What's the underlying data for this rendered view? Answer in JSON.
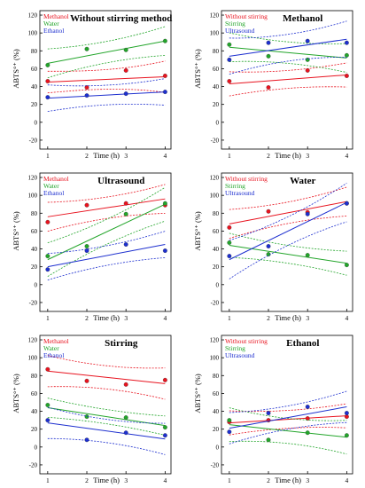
{
  "chart_data": [
    {
      "type": "scatter",
      "title": "Without stirring method",
      "xlabel": "Time (h)",
      "ylabel": "ABTS°⁺ (%)",
      "xticks": [
        1,
        2,
        3,
        4
      ],
      "yticks": [
        -20,
        0,
        20,
        40,
        60,
        80,
        100,
        120
      ],
      "xlim": [
        0.8,
        4.15
      ],
      "ylim": [
        -30,
        125
      ],
      "grid": false,
      "legend_position": "top-left",
      "series": [
        {
          "name": "Methanol",
          "color": "#e8131f",
          "x": [
            1,
            2,
            3,
            4
          ],
          "y": [
            46,
            39,
            58,
            52
          ],
          "fit": {
            "start": 45,
            "end": 51,
            "band_start": 9,
            "band_end": 13
          }
        },
        {
          "name": "Water",
          "color": "#22a52a",
          "x": [
            1,
            2,
            3,
            4
          ],
          "y": [
            64,
            82,
            81,
            91
          ],
          "fit": {
            "start": 66,
            "end": 91,
            "band_start": 12,
            "band_end": 12
          }
        },
        {
          "name": "Ethanol",
          "color": "#1d2fcf",
          "x": [
            1,
            2,
            3,
            4
          ],
          "y": [
            28,
            30,
            32,
            34
          ],
          "fit": {
            "start": 27,
            "end": 34,
            "band_start": 11,
            "band_end": 11
          }
        }
      ]
    },
    {
      "type": "scatter",
      "title": "Methanol",
      "xlabel": "Time (h)",
      "ylabel": "ABTS°⁺ (%)",
      "xticks": [
        1,
        2,
        3,
        4
      ],
      "yticks": [
        -20,
        0,
        20,
        40,
        60,
        80,
        100,
        120
      ],
      "xlim": [
        0.8,
        4.15
      ],
      "ylim": [
        -30,
        125
      ],
      "grid": false,
      "legend_position": "top-left",
      "series": [
        {
          "name": "Without stirring",
          "color": "#e8131f",
          "x": [
            1,
            2,
            3,
            4
          ],
          "y": [
            46,
            39,
            58,
            52
          ],
          "fit": {
            "start": 43,
            "end": 53,
            "band_start": 10,
            "band_end": 10
          }
        },
        {
          "name": "Stirring",
          "color": "#22a52a",
          "x": [
            1,
            2,
            3,
            4
          ],
          "y": [
            87,
            74,
            70,
            75
          ],
          "fit": {
            "start": 84,
            "end": 72,
            "band_start": 12,
            "band_end": 12
          }
        },
        {
          "name": "Ultrasound",
          "color": "#1d2fcf",
          "x": [
            1,
            2,
            3,
            4
          ],
          "y": [
            70,
            89,
            91,
            89
          ],
          "fit": {
            "start": 74,
            "end": 93,
            "band_start": 15,
            "band_end": 15
          }
        }
      ]
    },
    {
      "type": "scatter",
      "title": "Ultrasound",
      "xlabel": "Time (h)",
      "ylabel": "ABTS°⁺ (%)",
      "xticks": [
        1,
        2,
        3,
        4
      ],
      "yticks": [
        -20,
        0,
        20,
        40,
        60,
        80,
        100,
        120
      ],
      "xlim": [
        0.8,
        4.15
      ],
      "ylim": [
        -30,
        125
      ],
      "grid": false,
      "legend_position": "top-left",
      "series": [
        {
          "name": "Methanol",
          "color": "#e8131f",
          "x": [
            1,
            2,
            3,
            4
          ],
          "y": [
            70,
            89,
            91,
            89
          ],
          "fit": {
            "start": 76,
            "end": 96,
            "band_start": 12,
            "band_end": 12
          }
        },
        {
          "name": "Water",
          "color": "#22a52a",
          "x": [
            1,
            2,
            3,
            4
          ],
          "y": [
            32,
            43,
            79,
            91
          ],
          "fit": {
            "start": 28,
            "end": 90,
            "band_start": 14,
            "band_end": 14
          }
        },
        {
          "name": "Ethanol",
          "color": "#1d2fcf",
          "x": [
            1,
            2,
            3,
            4
          ],
          "y": [
            17,
            38,
            45,
            38
          ],
          "fit": {
            "start": 20,
            "end": 45,
            "band_start": 11,
            "band_end": 11
          }
        }
      ]
    },
    {
      "type": "scatter",
      "title": "Water",
      "xlabel": "Time (h)",
      "ylabel": "ABTS°⁺ (%)",
      "xticks": [
        1,
        2,
        3,
        4
      ],
      "yticks": [
        -20,
        0,
        20,
        40,
        60,
        80,
        100,
        120
      ],
      "xlim": [
        0.8,
        4.15
      ],
      "ylim": [
        -30,
        125
      ],
      "grid": false,
      "legend_position": "top-left",
      "series": [
        {
          "name": "Without stirring",
          "color": "#e8131f",
          "x": [
            1,
            2,
            3,
            4
          ],
          "y": [
            64,
            82,
            81,
            91
          ],
          "fit": {
            "start": 68,
            "end": 93,
            "band_start": 12,
            "band_end": 12
          }
        },
        {
          "name": "Stirring",
          "color": "#22a52a",
          "x": [
            1,
            2,
            3,
            4
          ],
          "y": [
            47,
            34,
            33,
            22
          ],
          "fit": {
            "start": 44,
            "end": 24,
            "band_start": 10,
            "band_end": 10
          }
        },
        {
          "name": "Ultrasound",
          "color": "#1d2fcf",
          "x": [
            1,
            2,
            3,
            4
          ],
          "y": [
            32,
            43,
            79,
            91
          ],
          "fit": {
            "start": 28,
            "end": 92,
            "band_start": 16,
            "band_end": 16
          }
        }
      ]
    },
    {
      "type": "scatter",
      "title": "Stirring",
      "xlabel": "Time (h)",
      "ylabel": "ABTS°⁺ (%)",
      "xticks": [
        1,
        2,
        3,
        4
      ],
      "yticks": [
        -20,
        0,
        20,
        40,
        60,
        80,
        100,
        120
      ],
      "xlim": [
        0.8,
        4.15
      ],
      "ylim": [
        -30,
        125
      ],
      "grid": false,
      "legend_position": "top-left",
      "series": [
        {
          "name": "Methanol",
          "color": "#e8131f",
          "x": [
            1,
            2,
            3,
            4
          ],
          "y": [
            87,
            74,
            70,
            75
          ],
          "fit": {
            "start": 85,
            "end": 71,
            "band_start": 13,
            "band_end": 13
          }
        },
        {
          "name": "Water",
          "color": "#22a52a",
          "x": [
            1,
            2,
            3,
            4
          ],
          "y": [
            47,
            34,
            33,
            22
          ],
          "fit": {
            "start": 44,
            "end": 24,
            "band_start": 8,
            "band_end": 8
          }
        },
        {
          "name": "Ethanol",
          "color": "#1d2fcf",
          "x": [
            1,
            2,
            3,
            4
          ],
          "y": [
            30,
            8,
            16,
            13
          ],
          "fit": {
            "start": 27,
            "end": 9,
            "band_start": 13,
            "band_end": 13
          }
        }
      ]
    },
    {
      "type": "scatter",
      "title": "Ethanol",
      "xlabel": "Time (h)",
      "ylabel": "ABTS°⁺ (%)",
      "xticks": [
        1,
        2,
        3,
        4
      ],
      "yticks": [
        -20,
        0,
        20,
        40,
        60,
        80,
        100,
        120
      ],
      "xlim": [
        0.8,
        4.15
      ],
      "ylim": [
        -30,
        125
      ],
      "grid": false,
      "legend_position": "top-left",
      "series": [
        {
          "name": "Without stirring",
          "color": "#e8131f",
          "x": [
            1,
            2,
            3,
            4
          ],
          "y": [
            28,
            30,
            32,
            34
          ],
          "fit": {
            "start": 27,
            "end": 35,
            "band_start": 10,
            "band_end": 10
          }
        },
        {
          "name": "Stirring",
          "color": "#22a52a",
          "x": [
            1,
            2,
            3,
            4
          ],
          "y": [
            30,
            8,
            16,
            13
          ],
          "fit": {
            "start": 25,
            "end": 11,
            "band_start": 14,
            "band_end": 14
          }
        },
        {
          "name": "Ultrasound",
          "color": "#1d2fcf",
          "x": [
            1,
            2,
            3,
            4
          ],
          "y": [
            17,
            38,
            45,
            38
          ],
          "fit": {
            "start": 21,
            "end": 45,
            "band_start": 13,
            "band_end": 13
          }
        }
      ]
    }
  ]
}
